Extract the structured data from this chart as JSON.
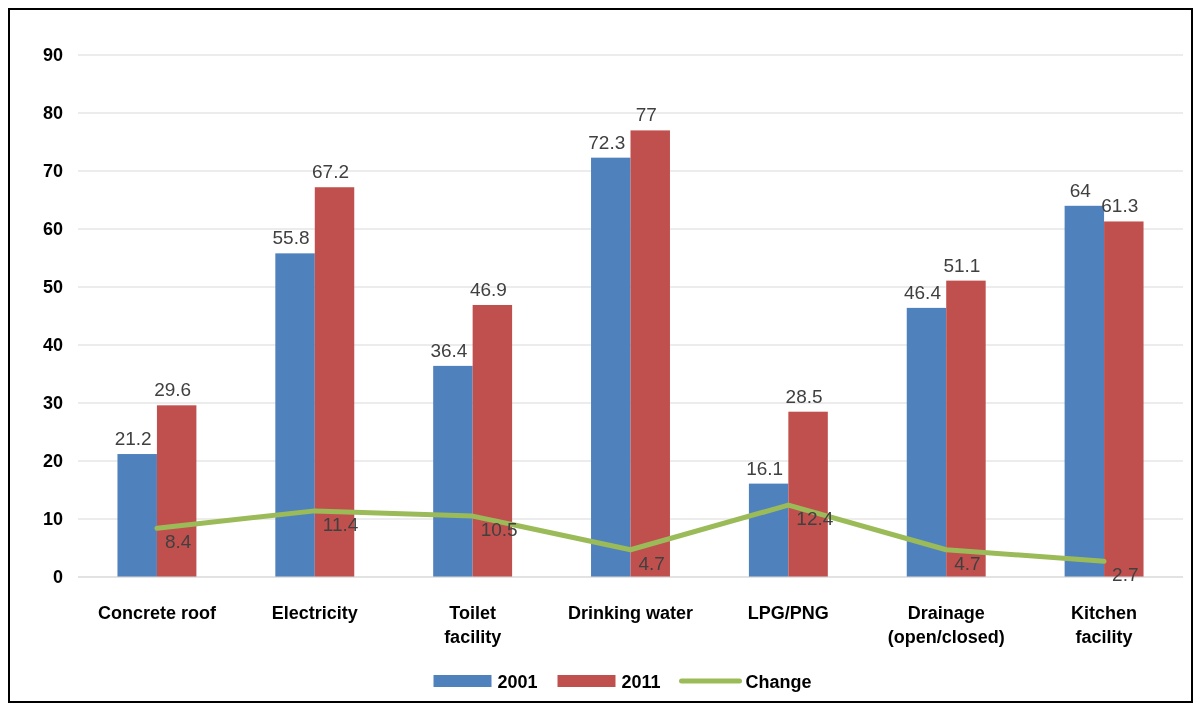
{
  "chart_data": {
    "type": "bar",
    "categories": [
      "Concrete roof",
      "Electricity",
      "Toilet facility",
      "Drinking water",
      "LPG/PNG",
      "Drainage (open/closed)",
      "Kitchen facility"
    ],
    "series": [
      {
        "name": "2001",
        "color": "#4f81bd",
        "values": [
          21.2,
          55.8,
          36.4,
          72.3,
          16.1,
          46.4,
          64
        ]
      },
      {
        "name": "2011",
        "color": "#c0504d",
        "values": [
          29.6,
          67.2,
          46.9,
          77,
          28.5,
          51.1,
          61.3
        ]
      },
      {
        "name": "Change",
        "type": "line",
        "color": "#9bbb59",
        "values": [
          8.4,
          11.4,
          10.5,
          4.7,
          12.4,
          4.7,
          2.7
        ]
      }
    ],
    "ylim": [
      0,
      90
    ],
    "yticks": [
      0,
      10,
      20,
      30,
      40,
      50,
      60,
      70,
      80,
      90
    ],
    "grid": "y",
    "legend": "bottom",
    "data_labels": true,
    "marker": "none"
  }
}
